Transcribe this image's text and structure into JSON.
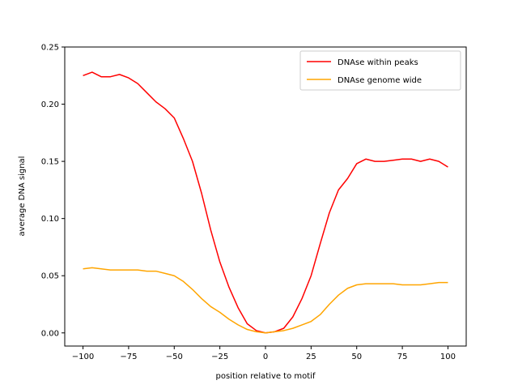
{
  "chart_data": {
    "type": "line",
    "title": "",
    "xlabel": "position relative to motif",
    "ylabel": "average DNA signal",
    "xlim": [
      -110,
      110
    ],
    "ylim": [
      -0.0115,
      0.25
    ],
    "xticks": [
      -100,
      -75,
      -50,
      -25,
      0,
      25,
      50,
      75,
      100
    ],
    "xtick_labels": [
      "−100",
      "−75",
      "−50",
      "−25",
      "0",
      "25",
      "50",
      "75",
      "100"
    ],
    "yticks": [
      0.0,
      0.05,
      0.1,
      0.15,
      0.2,
      0.25
    ],
    "ytick_labels": [
      "0.00",
      "0.05",
      "0.10",
      "0.15",
      "0.20",
      "0.25"
    ],
    "grid": false,
    "legend_position": "top-right",
    "series": [
      {
        "name": "DNAse within peaks",
        "color": "#ff0000",
        "x": [
          -100,
          -95,
          -90,
          -85,
          -80,
          -75,
          -70,
          -65,
          -60,
          -55,
          -50,
          -45,
          -40,
          -35,
          -30,
          -25,
          -20,
          -15,
          -10,
          -5,
          0,
          5,
          10,
          15,
          20,
          25,
          30,
          35,
          40,
          45,
          50,
          55,
          60,
          65,
          70,
          75,
          80,
          85,
          90,
          95,
          100
        ],
        "y": [
          0.225,
          0.228,
          0.224,
          0.224,
          0.226,
          0.223,
          0.218,
          0.21,
          0.202,
          0.196,
          0.188,
          0.17,
          0.15,
          0.122,
          0.09,
          0.062,
          0.04,
          0.022,
          0.008,
          0.002,
          0.0,
          0.001,
          0.004,
          0.014,
          0.03,
          0.05,
          0.078,
          0.105,
          0.125,
          0.135,
          0.148,
          0.152,
          0.15,
          0.15,
          0.151,
          0.152,
          0.152,
          0.15,
          0.152,
          0.15,
          0.145
        ]
      },
      {
        "name": "DNAse genome wide",
        "color": "#ffa500",
        "x": [
          -100,
          -95,
          -90,
          -85,
          -80,
          -75,
          -70,
          -65,
          -60,
          -55,
          -50,
          -45,
          -40,
          -35,
          -30,
          -25,
          -20,
          -15,
          -10,
          -5,
          0,
          5,
          10,
          15,
          20,
          25,
          30,
          35,
          40,
          45,
          50,
          55,
          60,
          65,
          70,
          75,
          80,
          85,
          90,
          95,
          100
        ],
        "y": [
          0.056,
          0.057,
          0.056,
          0.055,
          0.055,
          0.055,
          0.055,
          0.054,
          0.054,
          0.052,
          0.05,
          0.045,
          0.038,
          0.03,
          0.023,
          0.018,
          0.012,
          0.007,
          0.003,
          0.001,
          0.0,
          0.001,
          0.002,
          0.004,
          0.007,
          0.01,
          0.016,
          0.025,
          0.033,
          0.039,
          0.042,
          0.043,
          0.043,
          0.043,
          0.043,
          0.042,
          0.042,
          0.042,
          0.043,
          0.044,
          0.044
        ]
      }
    ]
  }
}
